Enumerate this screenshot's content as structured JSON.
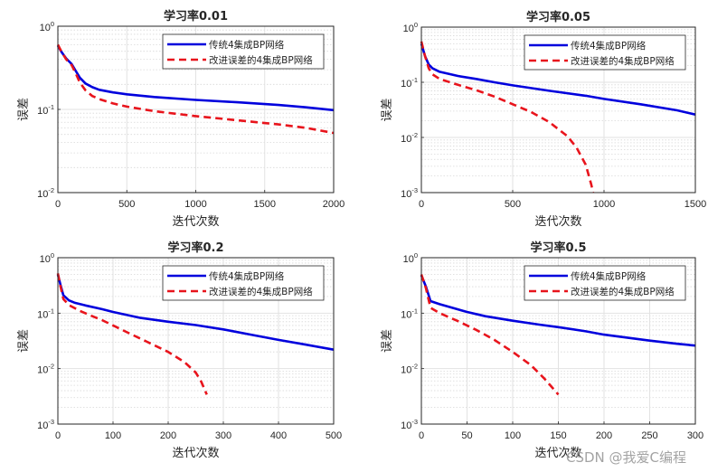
{
  "chart_data": [
    {
      "type": "line",
      "title": "学习率0.01",
      "xlabel": "迭代次数",
      "ylabel": "误差",
      "xlim": [
        0,
        2000
      ],
      "ylim": [
        0.01,
        1
      ],
      "yscale": "log",
      "xticks": [
        0,
        500,
        1000,
        1500,
        2000
      ],
      "xtick_labels": [
        "0",
        "500",
        "1000",
        "1500",
        "2000"
      ],
      "yticks": [
        0.01,
        0.1,
        1
      ],
      "ytick_labels": [
        {
          "base": "10",
          "exp": "-2"
        },
        {
          "base": "10",
          "exp": "-1"
        },
        {
          "base": "10",
          "exp": "0"
        }
      ],
      "grid": true,
      "legend_position": "top-right",
      "series": [
        {
          "name": "传统4集成BP网络",
          "color": "#0000dd",
          "style": "solid",
          "x": [
            0,
            30,
            60,
            100,
            130,
            160,
            200,
            250,
            300,
            400,
            500,
            700,
            1000,
            1300,
            1600,
            1800,
            2000
          ],
          "y": [
            0.58,
            0.48,
            0.41,
            0.35,
            0.29,
            0.24,
            0.205,
            0.185,
            0.172,
            0.16,
            0.152,
            0.141,
            0.13,
            0.122,
            0.113,
            0.106,
            0.098
          ]
        },
        {
          "name": "改进误差的4集成BP网络",
          "color": "#e8141c",
          "style": "dashed",
          "x": [
            0,
            30,
            60,
            100,
            130,
            160,
            200,
            250,
            300,
            400,
            500,
            700,
            1000,
            1300,
            1600,
            1800,
            2000
          ],
          "y": [
            0.6,
            0.48,
            0.4,
            0.34,
            0.27,
            0.21,
            0.17,
            0.145,
            0.133,
            0.118,
            0.108,
            0.095,
            0.083,
            0.074,
            0.066,
            0.06,
            0.052
          ]
        }
      ]
    },
    {
      "type": "line",
      "title": "学习率0.05",
      "xlabel": "迭代次数",
      "ylabel": "误差",
      "xlim": [
        0,
        1500
      ],
      "ylim": [
        0.001,
        1
      ],
      "yscale": "log",
      "xticks": [
        0,
        500,
        1000,
        1500
      ],
      "xtick_labels": [
        "0",
        "500",
        "1000",
        "1500"
      ],
      "yticks": [
        0.001,
        0.01,
        0.1,
        1
      ],
      "ytick_labels": [
        {
          "base": "10",
          "exp": "-3"
        },
        {
          "base": "10",
          "exp": "-2"
        },
        {
          "base": "10",
          "exp": "-1"
        },
        {
          "base": "10",
          "exp": "0"
        }
      ],
      "grid": true,
      "legend_position": "top-right",
      "series": [
        {
          "name": "传统4集成BP网络",
          "color": "#0000dd",
          "style": "solid",
          "x": [
            0,
            20,
            40,
            60,
            100,
            200,
            300,
            400,
            500,
            700,
            900,
            1000,
            1200,
            1400,
            1500
          ],
          "y": [
            0.5,
            0.3,
            0.21,
            0.18,
            0.155,
            0.13,
            0.115,
            0.1,
            0.088,
            0.07,
            0.057,
            0.05,
            0.04,
            0.031,
            0.026
          ]
        },
        {
          "name": "改进误差的4集成BP网络",
          "color": "#e8141c",
          "style": "dashed",
          "x": [
            0,
            20,
            40,
            60,
            100,
            200,
            300,
            400,
            500,
            600,
            700,
            800,
            850,
            900,
            930,
            940
          ],
          "y": [
            0.55,
            0.3,
            0.18,
            0.14,
            0.115,
            0.09,
            0.072,
            0.055,
            0.04,
            0.029,
            0.019,
            0.0105,
            0.0065,
            0.0032,
            0.0014,
            0.001
          ]
        }
      ]
    },
    {
      "type": "line",
      "title": "学习率0.2",
      "xlabel": "迭代次数",
      "ylabel": "误差",
      "xlim": [
        0,
        500
      ],
      "ylim": [
        0.001,
        1
      ],
      "yscale": "log",
      "xticks": [
        0,
        100,
        200,
        300,
        400,
        500
      ],
      "xtick_labels": [
        "0",
        "100",
        "200",
        "300",
        "400",
        "500"
      ],
      "yticks": [
        0.001,
        0.01,
        0.1,
        1
      ],
      "ytick_labels": [
        {
          "base": "10",
          "exp": "-3"
        },
        {
          "base": "10",
          "exp": "-2"
        },
        {
          "base": "10",
          "exp": "-1"
        },
        {
          "base": "10",
          "exp": "0"
        }
      ],
      "grid": true,
      "legend_position": "top-right",
      "series": [
        {
          "name": "传统4集成BP网络",
          "color": "#0000dd",
          "style": "solid",
          "x": [
            0,
            5,
            10,
            20,
            30,
            50,
            80,
            100,
            150,
            200,
            250,
            300,
            350,
            400,
            450,
            500
          ],
          "y": [
            0.5,
            0.32,
            0.21,
            0.17,
            0.155,
            0.138,
            0.118,
            0.105,
            0.082,
            0.07,
            0.061,
            0.051,
            0.041,
            0.033,
            0.027,
            0.022
          ]
        },
        {
          "name": "改进误差的4集成BP网络",
          "color": "#e8141c",
          "style": "dashed",
          "x": [
            0,
            5,
            10,
            20,
            40,
            60,
            80,
            100,
            130,
            160,
            200,
            230,
            250,
            260,
            270
          ],
          "y": [
            0.52,
            0.3,
            0.18,
            0.14,
            0.11,
            0.09,
            0.075,
            0.06,
            0.043,
            0.031,
            0.02,
            0.013,
            0.0085,
            0.0058,
            0.0034
          ]
        }
      ]
    },
    {
      "type": "line",
      "title": "学习率0.5",
      "xlabel": "迭代次数",
      "ylabel": "误差",
      "xlim": [
        0,
        300
      ],
      "ylim": [
        0.001,
        1
      ],
      "yscale": "log",
      "xticks": [
        0,
        50,
        100,
        150,
        200,
        250,
        300
      ],
      "xtick_labels": [
        "0",
        "50",
        "100",
        "150",
        "200",
        "250",
        "300"
      ],
      "yticks": [
        0.001,
        0.01,
        0.1,
        1
      ],
      "ytick_labels": [
        {
          "base": "10",
          "exp": "-3"
        },
        {
          "base": "10",
          "exp": "-2"
        },
        {
          "base": "10",
          "exp": "-1"
        },
        {
          "base": "10",
          "exp": "0"
        }
      ],
      "grid": true,
      "legend_position": "top-right",
      "series": [
        {
          "name": "传统4集成BP网络",
          "color": "#0000dd",
          "style": "solid",
          "x": [
            0,
            5,
            10,
            20,
            30,
            50,
            70,
            100,
            130,
            150,
            180,
            200,
            250,
            280,
            300
          ],
          "y": [
            0.48,
            0.3,
            0.165,
            0.145,
            0.13,
            0.105,
            0.088,
            0.073,
            0.062,
            0.056,
            0.047,
            0.041,
            0.032,
            0.028,
            0.026
          ]
        },
        {
          "name": "改进误差的4集成BP网络",
          "color": "#e8141c",
          "style": "dashed",
          "x": [
            0,
            5,
            10,
            20,
            40,
            60,
            80,
            100,
            120,
            135,
            150
          ],
          "y": [
            0.5,
            0.28,
            0.125,
            0.1,
            0.072,
            0.05,
            0.033,
            0.02,
            0.0115,
            0.0065,
            0.0034
          ]
        }
      ]
    }
  ],
  "watermark": "CSDN @我爱C编程"
}
